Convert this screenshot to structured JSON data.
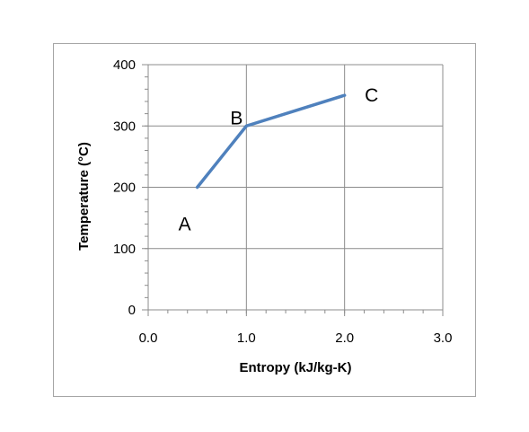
{
  "chart_data": {
    "type": "line",
    "xlabel": "Entropy (kJ/kg-K)",
    "ylabel": "Temperature (°C)",
    "xlim": [
      0,
      3
    ],
    "ylim": [
      0,
      400
    ],
    "x_ticks": [
      "0.0",
      "1.0",
      "2.0",
      "3.0"
    ],
    "y_ticks": [
      "0",
      "100",
      "200",
      "300",
      "400"
    ],
    "grid": true,
    "series": [
      {
        "color": "#4f81bd",
        "points": [
          {
            "x": 0.5,
            "y": 200
          },
          {
            "x": 1.0,
            "y": 300
          },
          {
            "x": 2.0,
            "y": 350
          }
        ]
      }
    ],
    "annotations": [
      {
        "text": "A",
        "x": 0.5,
        "y": 200
      },
      {
        "text": "B",
        "x": 1.0,
        "y": 300
      },
      {
        "text": "C",
        "x": 2.0,
        "y": 350
      }
    ]
  }
}
